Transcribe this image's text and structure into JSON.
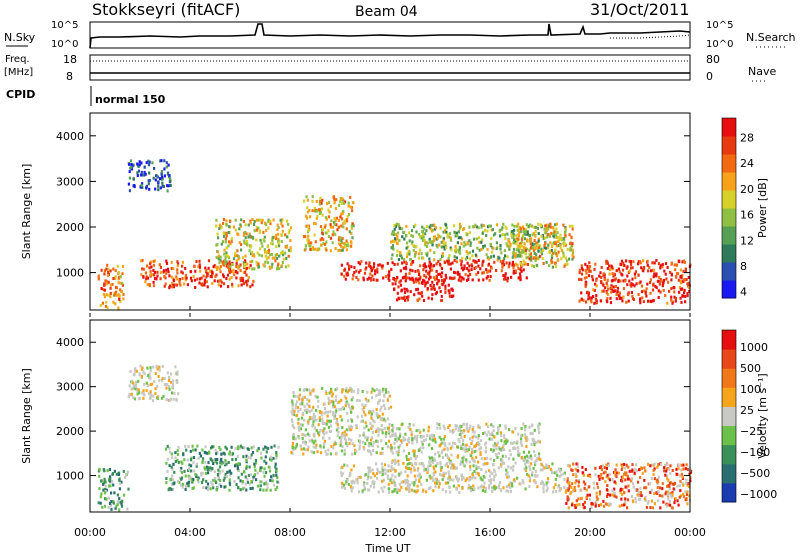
{
  "header": {
    "title": "Stokkseyri (fitACF)",
    "beam": "Beam 04",
    "date": "31/Oct/2011"
  },
  "noise_panel": {
    "left_label": "N.Sky",
    "right_label": "N.Search",
    "left_ticks": [
      "10^5",
      "10^0"
    ],
    "right_ticks": [
      "10^5",
      "10^0"
    ]
  },
  "freq_panel": {
    "left_label_1": "Freq.",
    "left_label_2": "[MHz]",
    "right_label": "Nave",
    "left_ticks": [
      "18",
      "8"
    ],
    "right_ticks": [
      "80",
      "0"
    ]
  },
  "cpid_panel": {
    "label": "CPID",
    "program": "normal 150"
  },
  "x_axis": {
    "label": "Time UT",
    "ticks": [
      "00:00",
      "04:00",
      "08:00",
      "12:00",
      "16:00",
      "20:00",
      "00:00"
    ]
  },
  "chart_data": [
    {
      "type": "heatmap",
      "name": "power",
      "ylabel": "Slant Range [km]",
      "ylim": [
        180,
        4500
      ],
      "yticks": [
        "1000",
        "2000",
        "3000",
        "4000"
      ],
      "xlim_hours": [
        0,
        24
      ],
      "colorbar_label": "Power [dB]",
      "colorbar_ticks": [
        "28",
        "24",
        "20",
        "16",
        "12",
        "8",
        "4"
      ],
      "colors": [
        "#1a1af0",
        "#2a4fb0",
        "#2f7a5a",
        "#55a055",
        "#8fc043",
        "#d8d02a",
        "#f7a21a",
        "#f26a12",
        "#e83a10",
        "#e60f10"
      ],
      "bands": [
        {
          "t0": 0.3,
          "t1": 1.3,
          "r0": 250,
          "r1": 1200,
          "level": 0.7
        },
        {
          "t0": 1.5,
          "t1": 3.2,
          "r0": 2800,
          "r1": 3500,
          "level": 0.15
        },
        {
          "t0": 2.0,
          "t1": 6.5,
          "r0": 700,
          "r1": 1300,
          "level": 0.85
        },
        {
          "t0": 5.0,
          "t1": 8.0,
          "r0": 1100,
          "r1": 2200,
          "level": 0.55
        },
        {
          "t0": 8.5,
          "t1": 10.5,
          "r0": 1500,
          "r1": 2700,
          "level": 0.6
        },
        {
          "t0": 10.0,
          "t1": 17.5,
          "r0": 850,
          "r1": 1300,
          "level": 0.95
        },
        {
          "t0": 12.0,
          "t1": 14.5,
          "r0": 420,
          "r1": 950,
          "level": 0.99
        },
        {
          "t0": 12.0,
          "t1": 19.0,
          "r0": 1300,
          "r1": 2100,
          "level": 0.45
        },
        {
          "t0": 17.0,
          "t1": 19.3,
          "r0": 1150,
          "r1": 2100,
          "level": 0.6
        },
        {
          "t0": 19.5,
          "t1": 24.0,
          "r0": 350,
          "r1": 1300,
          "level": 0.9
        }
      ]
    },
    {
      "type": "heatmap",
      "name": "velocity",
      "ylabel": "Slant Range [km]",
      "ylim": [
        180,
        4500
      ],
      "yticks": [
        "1000",
        "2000",
        "3000",
        "4000"
      ],
      "xlim_hours": [
        0,
        24
      ],
      "colorbar_label": "Velocity [m s⁻¹]",
      "colorbar_ticks": [
        "1000",
        "500",
        "100",
        "25",
        "−25",
        "−100",
        "−500",
        "−1000"
      ],
      "colors": [
        "#1a3cb0",
        "#2a6f70",
        "#3a8f5a",
        "#6cc14a",
        "#c8c8c4",
        "#f5a51c",
        "#f0781a",
        "#e8481a",
        "#e60f10"
      ],
      "bands": [
        {
          "t0": 0.3,
          "t1": 1.5,
          "r0": 250,
          "r1": 1200,
          "level": "teal"
        },
        {
          "t0": 1.5,
          "t1": 3.5,
          "r0": 2700,
          "r1": 3500,
          "level": "grey"
        },
        {
          "t0": 3.0,
          "t1": 7.5,
          "r0": 700,
          "r1": 1700,
          "level": "teal"
        },
        {
          "t0": 8.0,
          "t1": 12.0,
          "r0": 1500,
          "r1": 3000,
          "level": "grey"
        },
        {
          "t0": 10.0,
          "t1": 19.0,
          "r0": 650,
          "r1": 1300,
          "level": "grey"
        },
        {
          "t0": 12.0,
          "t1": 18.0,
          "r0": 1300,
          "r1": 2200,
          "level": "grey"
        },
        {
          "t0": 19.0,
          "t1": 24.0,
          "r0": 300,
          "r1": 1300,
          "level": "orange"
        }
      ]
    }
  ]
}
